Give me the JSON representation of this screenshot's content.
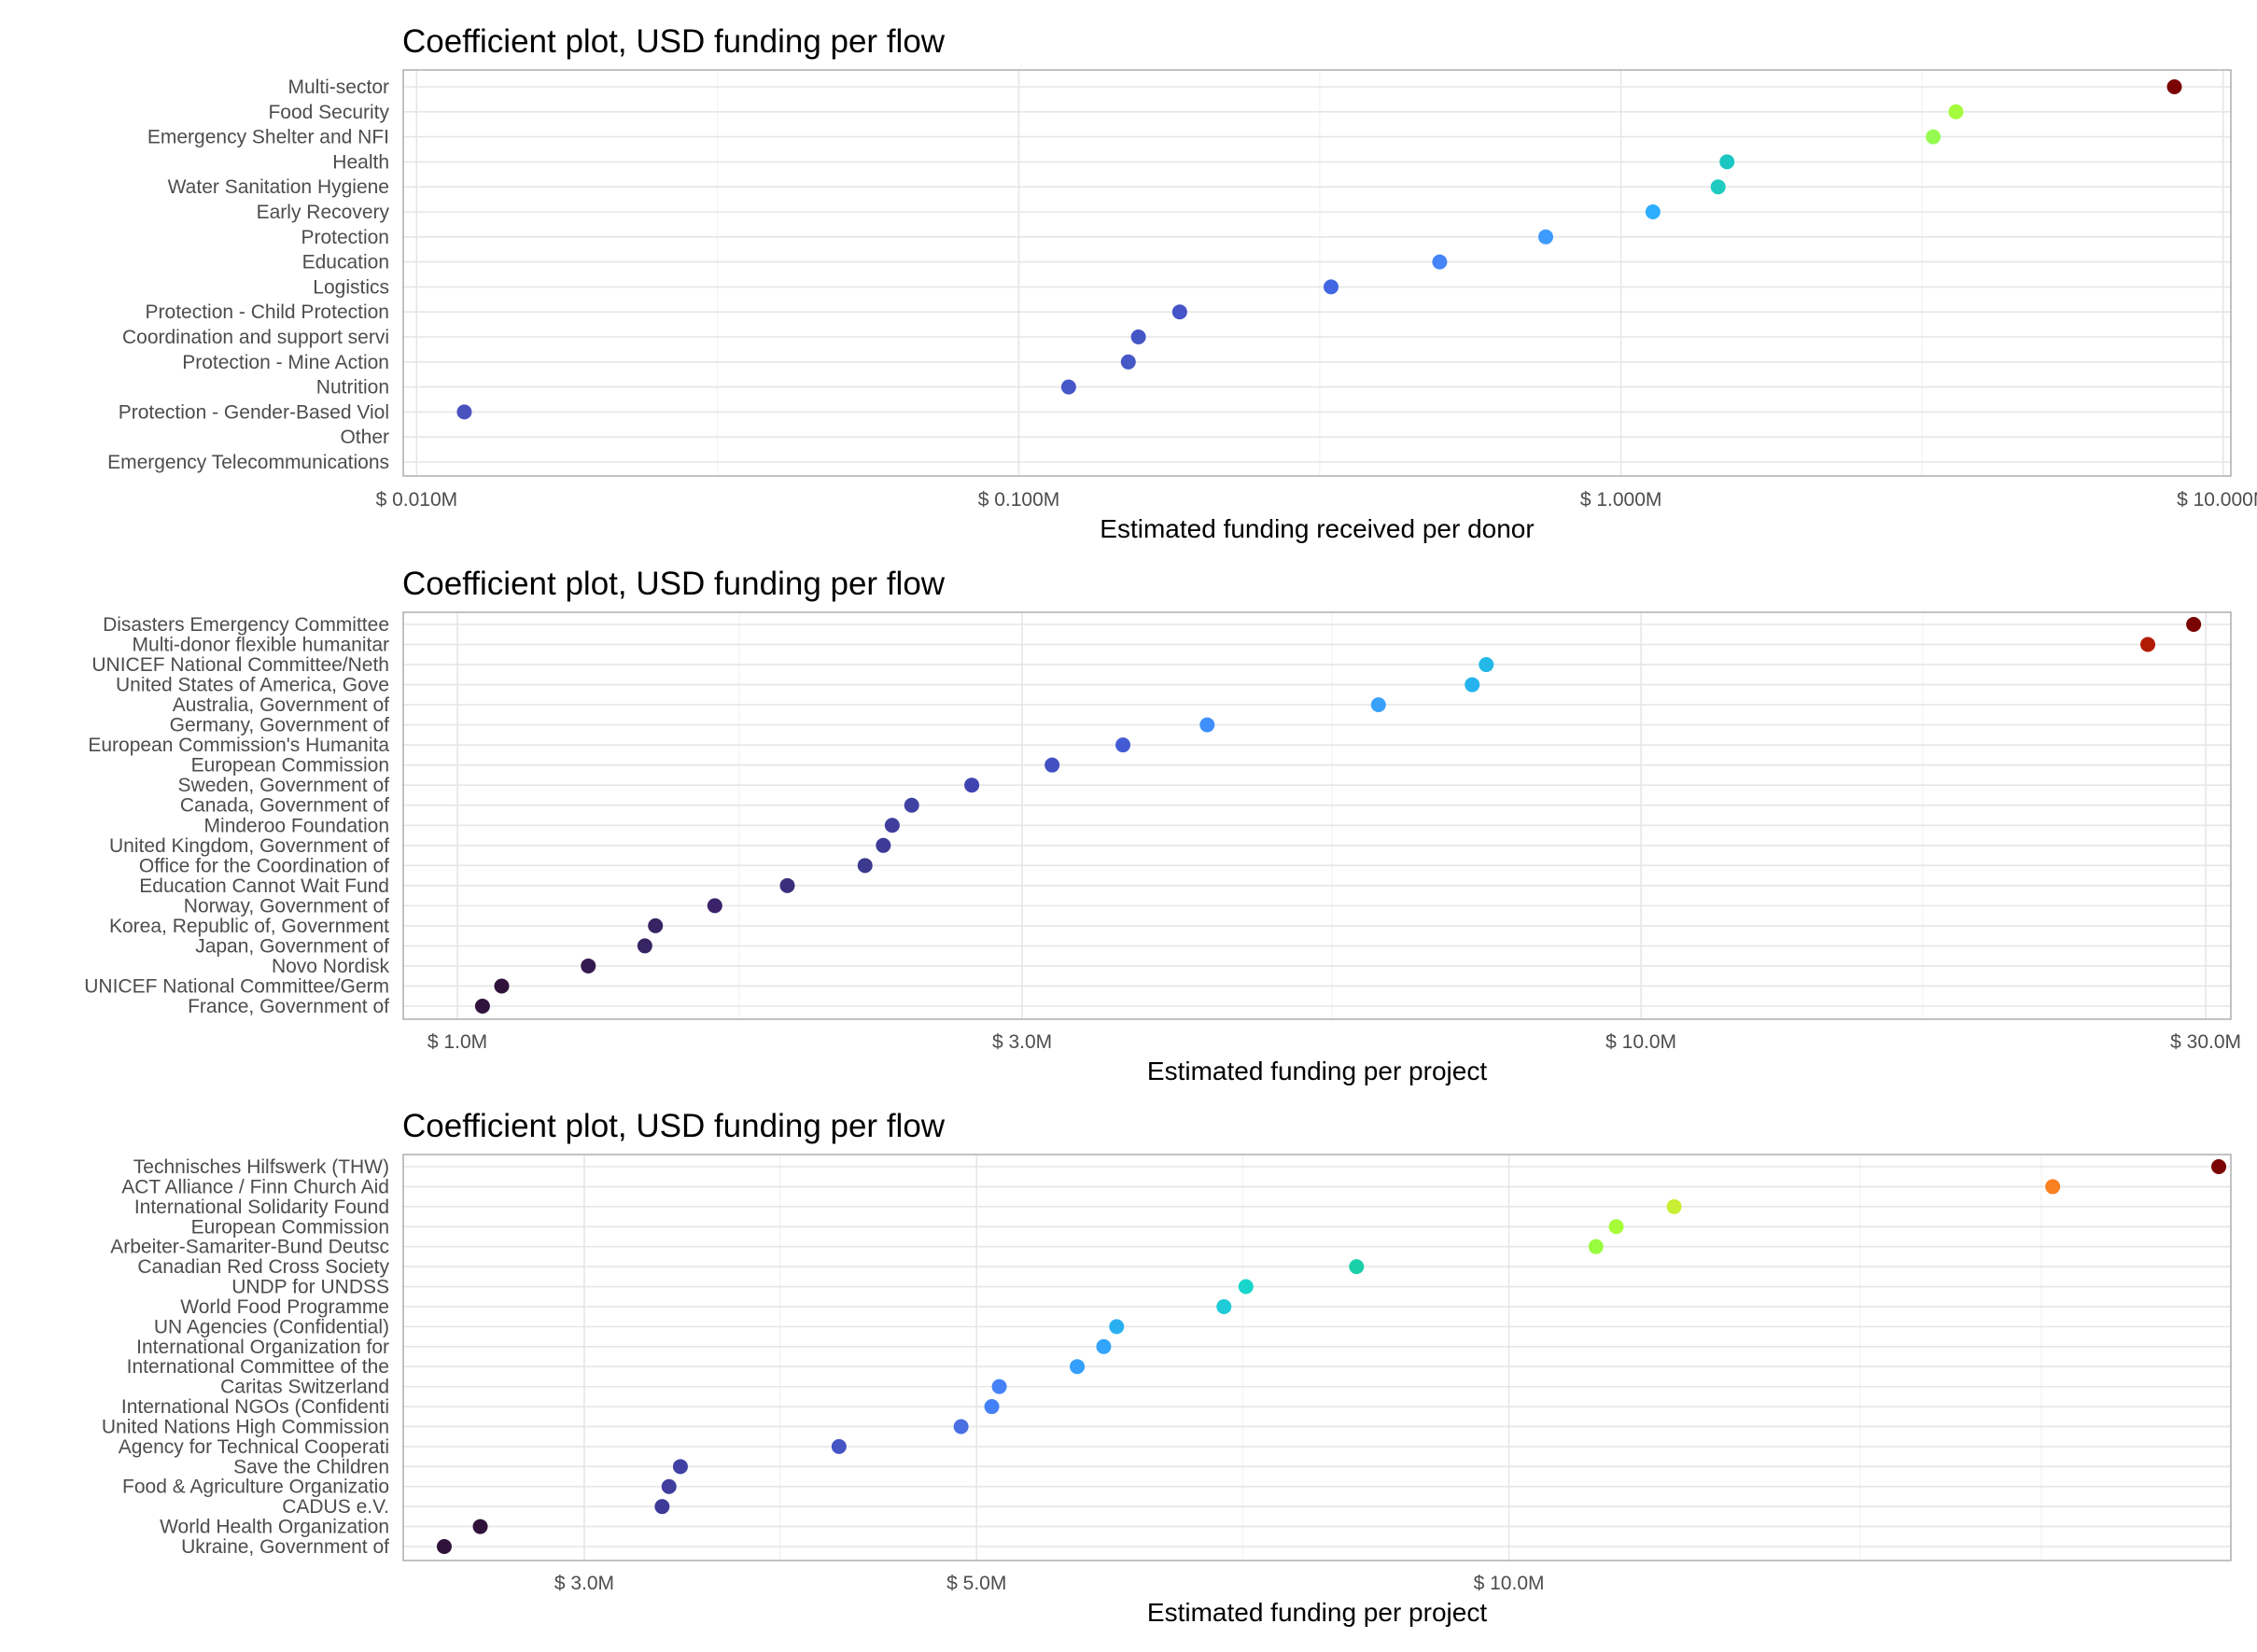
{
  "chart_data": [
    {
      "type": "scatter",
      "title": "Coefficient plot, USD funding per flow",
      "xlabel": "Estimated funding received per donor",
      "x_scale": "log10",
      "xlim": [
        0.0095,
        10.3
      ],
      "major_ticks": [
        0.01,
        0.1,
        1,
        10
      ],
      "tick_labels": [
        "$ 0.010M",
        "$ 0.100M",
        "$ 1.000M",
        "$ 10.000M"
      ],
      "minor_ticks": [
        0.0316,
        0.316,
        3.16
      ],
      "categories": [
        "Multi-sector",
        "Food Security",
        "Emergency Shelter and NFI",
        "Health",
        "Water Sanitation Hygiene",
        "Early Recovery",
        "Protection",
        "Education",
        "Logistics",
        "Protection - Child Protection",
        "Coordination and support servi",
        "Protection - Mine Action",
        "Nutrition",
        "Protection - Gender-Based Viol",
        "Other",
        "Emergency Telecommunications"
      ],
      "values": [
        8.3,
        3.6,
        3.3,
        1.5,
        1.45,
        1.13,
        0.75,
        0.5,
        0.33,
        0.185,
        0.158,
        0.152,
        0.121,
        0.012,
        null,
        null
      ],
      "colors": [
        "#7a0403",
        "#a4fc3c",
        "#95fb51",
        "#1ac7c2",
        "#1fcac0",
        "#2eaefe",
        "#3e9bfe",
        "#4585f7",
        "#4168e2",
        "#4554c8",
        "#4556c5",
        "#4657c6",
        "#4658c8",
        "#4a52c0",
        "#ffffff",
        "#ffffff"
      ]
    },
    {
      "type": "scatter",
      "title": "Coefficient plot, USD funding per flow",
      "xlabel": "Estimated funding per project",
      "x_scale": "log10",
      "xlim": [
        0.9,
        31.5
      ],
      "major_ticks": [
        1,
        3,
        10,
        30
      ],
      "tick_labels": [
        "$ 1.0M",
        "$ 3.0M",
        "$ 10.0M",
        "$ 30.0M"
      ],
      "minor_ticks": [
        1.73,
        5.48,
        17.3
      ],
      "categories": [
        "Disasters Emergency Committee",
        "Multi-donor flexible humanitar",
        "UNICEF National Committee/Neth",
        "United States of America, Gove",
        "Australia, Government of",
        "Germany, Government of",
        "European Commission's Humanita",
        "European Commission",
        "Sweden, Government of",
        "Canada, Government of",
        "Minderoo Foundation",
        "United Kingdom, Government of",
        "Office for the Coordination of",
        "Education Cannot Wait Fund",
        "Norway, Government of",
        "Korea, Republic of, Government",
        "Japan, Government of",
        "Novo Nordisk",
        "UNICEF National Committee/Germ",
        "France, Government of"
      ],
      "values": [
        29.3,
        26.8,
        7.4,
        7.2,
        6.0,
        4.3,
        3.65,
        3.18,
        2.72,
        2.42,
        2.33,
        2.29,
        2.21,
        1.9,
        1.65,
        1.47,
        1.44,
        1.29,
        1.09,
        1.05
      ],
      "colors": [
        "#7a0403",
        "#b11b01",
        "#24b8e6",
        "#26b2ec",
        "#3aa1fb",
        "#3f8ffc",
        "#435cd4",
        "#4151c2",
        "#3e45b0",
        "#3f41a3",
        "#403e9d",
        "#3e3b97",
        "#3b3a8e",
        "#3b2f7d",
        "#3b2369",
        "#382363",
        "#372462",
        "#331b4f",
        "#30123b",
        "#31143e"
      ]
    },
    {
      "type": "scatter",
      "title": "Coefficient plot, USD funding per flow",
      "xlabel": "Estimated funding per project",
      "x_scale": "log10",
      "xlim": [
        2.37,
        25.6
      ],
      "major_ticks": [
        3,
        5,
        10
      ],
      "tick_labels": [
        "$ 3.0M",
        "$ 5.0M",
        "$ 10.0M"
      ],
      "minor_ticks": [
        3.87,
        7.07,
        15.8,
        20.0
      ],
      "categories": [
        "Technisches Hilfswerk (THW)",
        "ACT Alliance / Finn Church Aid",
        "International Solidarity Found",
        "European Commission",
        "Arbeiter-Samariter-Bund Deutsc",
        "Canadian Red Cross Society",
        "UNDP for UNDSS",
        "World Food Programme",
        "UN Agencies (Confidential)",
        "International Organization for",
        "International Committee of the",
        "Caritas Switzerland",
        "International NGOs (Confidenti",
        "United Nations High Commission",
        "Agency for Technical Cooperati",
        "Save the Children",
        "Food & Agriculture Organizatio",
        "CADUS e.V.",
        "World Health Organization",
        "Ukraine, Government of"
      ],
      "values": [
        25.2,
        20.3,
        12.4,
        11.5,
        11.2,
        8.2,
        7.1,
        6.9,
        6.0,
        5.9,
        5.7,
        5.15,
        5.1,
        4.9,
        4.18,
        3.4,
        3.35,
        3.32,
        2.62,
        2.5
      ],
      "colors": [
        "#7a0403",
        "#fb8022",
        "#c8ef34",
        "#a7fc3a",
        "#98fd3d",
        "#1bd0a8",
        "#18d6cb",
        "#1ecbd6",
        "#2ab0f2",
        "#33a4fb",
        "#35a0fb",
        "#4682f7",
        "#4481f6",
        "#4a6fe3",
        "#4555c5",
        "#4041a3",
        "#3f3e9c",
        "#3e3b98",
        "#30123b",
        "#30123b"
      ]
    }
  ]
}
